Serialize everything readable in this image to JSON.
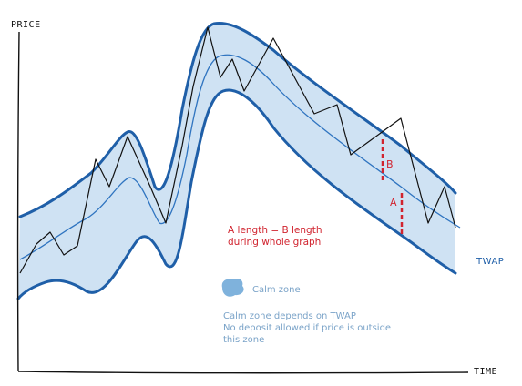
{
  "axes": {
    "y_label": "PRICE",
    "x_label": "TIME"
  },
  "series": {
    "twap_label": "TWAP"
  },
  "legend": {
    "calm_zone_label": "Calm zone"
  },
  "markers": {
    "a_label": "A",
    "b_label": "B"
  },
  "notes": {
    "length_note_line1": "A length = B length",
    "length_note_line2": "during whole graph",
    "calm_desc_line1": "Calm zone depends on TWAP",
    "calm_desc_line2": "No deposit allowed if price is outside",
    "calm_desc_line3": "this zone"
  },
  "colors": {
    "band_fill": "#cfe2f3",
    "band_edge": "#1f5fa8",
    "twap_line": "#2f74c0",
    "price_line": "#111111",
    "marker": "#d1242f",
    "calm_text": "#7aa3c8"
  }
}
